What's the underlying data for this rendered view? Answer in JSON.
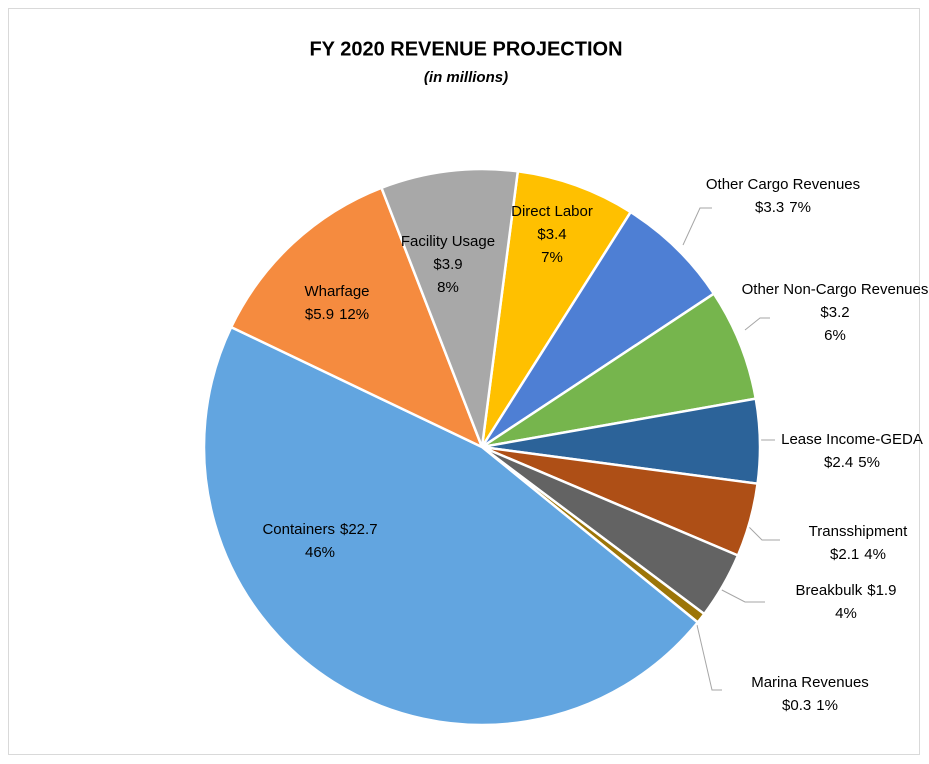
{
  "chart_data": {
    "type": "pie",
    "title": "FY 2020 REVENUE PROJECTION",
    "subtitle": "(in millions)",
    "categories": [
      "Direct Labor",
      "Other Cargo Revenues",
      "Other Non-Cargo Revenues",
      "Lease Income-GEDA",
      "Transshipment",
      "Breakbulk",
      "Marina Revenues",
      "Containers",
      "Wharfage",
      "Facility Usage"
    ],
    "values": [
      3.4,
      3.3,
      3.2,
      2.4,
      2.1,
      1.9,
      0.3,
      22.7,
      5.9,
      3.9
    ],
    "value_labels": [
      "$3.4",
      "$3.3",
      "$3.2",
      "$2.4",
      "$2.1",
      "$1.9",
      "$0.3",
      "$22.7",
      "$5.9",
      "$3.9"
    ],
    "percents": [
      7,
      7,
      6,
      5,
      4,
      4,
      1,
      46,
      12,
      8
    ],
    "percent_labels": [
      "7%",
      "7%",
      "6%",
      "5%",
      "4%",
      "4%",
      "1%",
      "46%",
      "12%",
      "8%"
    ],
    "colors": [
      "#ffc000",
      "#4e7fd4",
      "#76b54d",
      "#2c6399",
      "#ae4f16",
      "#636363",
      "#9c7508",
      "#62a5e0",
      "#f58b3f",
      "#a8a8a8"
    ]
  }
}
